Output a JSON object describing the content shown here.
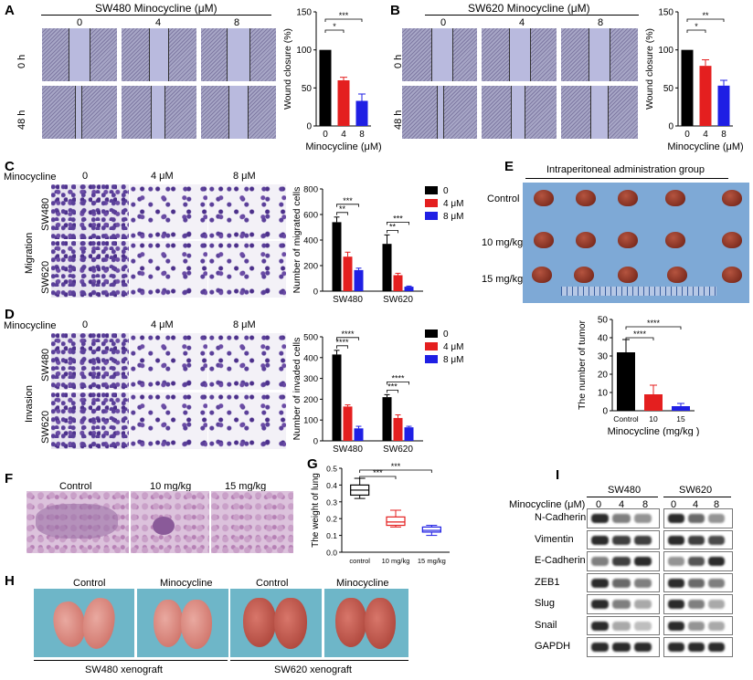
{
  "panels": {
    "A": {
      "letter": "A",
      "header": "SW480  Minocycline (μM)",
      "doses": [
        "0",
        "4",
        "8"
      ],
      "times": [
        "0 h",
        "48 h"
      ]
    },
    "B": {
      "letter": "B",
      "header": "SW620  Minocycline (μM)",
      "doses": [
        "0",
        "4",
        "8"
      ],
      "times": [
        "0 h",
        "48 h"
      ]
    },
    "C": {
      "letter": "C",
      "row_label": "Minocycline",
      "cols": [
        "0",
        "4 μM",
        "8 μM"
      ],
      "cells": [
        "SW480",
        "SW620"
      ],
      "side": "Migration"
    },
    "D": {
      "letter": "D",
      "row_label": "Minocycline",
      "cols": [
        "0",
        "4 μM",
        "8 μM"
      ],
      "cells": [
        "SW480",
        "SW620"
      ],
      "side": "Invasion"
    },
    "E": {
      "letter": "E",
      "header": "Intraperitoneal administration group",
      "rows": [
        "Control",
        "10 mg/kg",
        "15 mg/kg"
      ]
    },
    "F": {
      "letter": "F",
      "cols": [
        "Control",
        "10 mg/kg",
        "15 mg/kg"
      ]
    },
    "G": {
      "letter": "G"
    },
    "H": {
      "letter": "H",
      "cols": [
        "Control",
        "Minocycline",
        "Control",
        "Minocycline"
      ],
      "footers": [
        "SW480 xenograft",
        "SW620 xenograft"
      ]
    },
    "I": {
      "letter": "I",
      "groups": [
        "SW480",
        "SW620"
      ],
      "dose_label": "Minocycline (μM)",
      "doses": [
        "0",
        "4",
        "8"
      ],
      "proteins": [
        "N-Cadherin",
        "Vimentin",
        "E-Cadherin",
        "ZEB1",
        "Slug",
        "Snail",
        "GAPDH"
      ]
    }
  },
  "chart_data": [
    {
      "id": "A-bar",
      "type": "bar",
      "categories": [
        "0",
        "4",
        "8"
      ],
      "values": [
        100,
        60,
        33
      ],
      "errors": [
        0,
        4,
        9
      ],
      "colors": [
        "#000000",
        "#e41f1f",
        "#1f1fe4"
      ],
      "xlabel": "Minocycline (μM)",
      "ylabel": "Wound closure (%)",
      "ylim": [
        0,
        150
      ],
      "yticks": [
        "0",
        "50",
        "100",
        "150"
      ],
      "significance": [
        "***",
        "*"
      ]
    },
    {
      "id": "B-bar",
      "type": "bar",
      "categories": [
        "0",
        "4",
        "8"
      ],
      "values": [
        100,
        79,
        53
      ],
      "errors": [
        0,
        8,
        7
      ],
      "colors": [
        "#000000",
        "#e41f1f",
        "#1f1fe4"
      ],
      "xlabel": "Minocycline (μM)",
      "ylabel": "Wound closure (%)",
      "ylim": [
        0,
        150
      ],
      "yticks": [
        "0",
        "50",
        "100",
        "150"
      ],
      "significance": [
        "**",
        "*"
      ]
    },
    {
      "id": "C-bar",
      "type": "bar",
      "categories": [
        "SW480",
        "SW620"
      ],
      "series": [
        {
          "name": "0",
          "values": [
            540,
            370
          ],
          "errors": [
            40,
            70
          ],
          "color": "#000000"
        },
        {
          "name": "4 μM",
          "values": [
            270,
            125
          ],
          "errors": [
            35,
            15
          ],
          "color": "#e41f1f"
        },
        {
          "name": "8 μM",
          "values": [
            165,
            35
          ],
          "errors": [
            15,
            5
          ],
          "color": "#1f1fe4"
        }
      ],
      "ylabel": "Number of migrated cells",
      "ylim": [
        0,
        800
      ],
      "yticks": [
        "0",
        "200",
        "400",
        "600",
        "800"
      ],
      "significance": [
        "***",
        "**",
        "***",
        "**"
      ]
    },
    {
      "id": "D-bar",
      "type": "bar",
      "categories": [
        "SW480",
        "SW620"
      ],
      "series": [
        {
          "name": "0",
          "values": [
            415,
            210
          ],
          "errors": [
            20,
            12
          ],
          "color": "#000000"
        },
        {
          "name": "4 μM",
          "values": [
            165,
            110
          ],
          "errors": [
            8,
            15
          ],
          "color": "#e41f1f"
        },
        {
          "name": "8 μM",
          "values": [
            60,
            65
          ],
          "errors": [
            10,
            5
          ],
          "color": "#1f1fe4"
        }
      ],
      "ylabel": "Number of invaded cells",
      "ylim": [
        0,
        500
      ],
      "yticks": [
        "0",
        "100",
        "200",
        "300",
        "400",
        "500"
      ],
      "significance": [
        "****",
        "****",
        "****",
        "***"
      ]
    },
    {
      "id": "E-bar",
      "type": "bar",
      "categories": [
        "Control",
        "10",
        "15"
      ],
      "values": [
        32,
        9,
        2.5
      ],
      "errors": [
        7,
        5,
        1.5
      ],
      "colors": [
        "#000000",
        "#e41f1f",
        "#1f1fe4"
      ],
      "xlabel": "Minocycline (mg/kg )",
      "ylabel": "The number of tumor",
      "ylim": [
        0,
        50
      ],
      "yticks": [
        "0",
        "10",
        "20",
        "30",
        "40",
        "50"
      ],
      "significance": [
        "****",
        "****"
      ]
    },
    {
      "id": "G-box",
      "type": "box",
      "categories": [
        "control",
        "10 mg/kg",
        "15 mg/kg"
      ],
      "boxes": [
        {
          "min": 0.32,
          "q1": 0.34,
          "median": 0.37,
          "q3": 0.4,
          "max": 0.44,
          "color": "#000000"
        },
        {
          "min": 0.15,
          "q1": 0.16,
          "median": 0.18,
          "q3": 0.21,
          "max": 0.25,
          "color": "#e41f1f"
        },
        {
          "min": 0.1,
          "q1": 0.12,
          "median": 0.13,
          "q3": 0.15,
          "max": 0.16,
          "color": "#1f1fe4"
        }
      ],
      "ylabel": "The weight of lung",
      "ylim": [
        0,
        0.5
      ],
      "yticks": [
        "0.0",
        "0.1",
        "0.2",
        "0.3",
        "0.4",
        "0.5"
      ],
      "significance": [
        "***",
        "***"
      ]
    }
  ]
}
